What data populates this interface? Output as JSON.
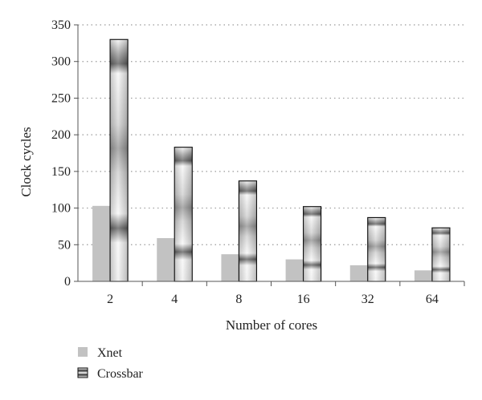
{
  "chart_data": {
    "type": "bar",
    "categories": [
      "2",
      "4",
      "8",
      "16",
      "32",
      "64"
    ],
    "series": [
      {
        "name": "Xnet",
        "values": [
          103,
          59,
          37,
          30,
          22,
          15
        ]
      },
      {
        "name": "Crossbar",
        "values": [
          330,
          183,
          137,
          102,
          87,
          73
        ]
      }
    ],
    "xlabel": "Number of cores",
    "ylabel": "Clock cycles",
    "ylim": [
      0,
      350
    ],
    "yticks": [
      0,
      50,
      100,
      150,
      200,
      250,
      300,
      350
    ],
    "grid": true,
    "legend_position": "bottom-left"
  },
  "colors": {
    "xnet": "#c2c2c2",
    "crossbar_light": "#f2f2f2",
    "crossbar_dark": "#1f1f1f",
    "grid": "#9a9a9a",
    "axis": "#555555"
  }
}
